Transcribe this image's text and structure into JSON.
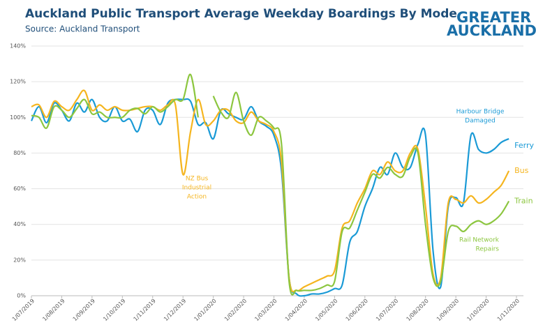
{
  "chart_data": {
    "type": "line",
    "title": "Auckland Public Transport Average Weekday Boardings By Mode",
    "subtitle": "Source: Auckland Transport",
    "logo": [
      "GREATER",
      "AUCKLAND"
    ],
    "categories": [
      "1/07/2019",
      null,
      null,
      null,
      "1/08/2019",
      null,
      null,
      null,
      "1/09/2019",
      null,
      null,
      null,
      "1/10/2019",
      null,
      null,
      null,
      "1/11/2019",
      null,
      null,
      null,
      "1/12/2019",
      null,
      null,
      null,
      "1/01/2020",
      null,
      null,
      null,
      "1/02/2020",
      null,
      null,
      null,
      "1/03/2020",
      null,
      null,
      null,
      "1/04/2020",
      null,
      null,
      null,
      "1/05/2020",
      null,
      null,
      null,
      "1/06/2020",
      null,
      null,
      null,
      "1/07/2020",
      null,
      null,
      null,
      "1/08/2020",
      null,
      null,
      null,
      "1/09/2020",
      null,
      null,
      null,
      "1/10/2020",
      null,
      null,
      null,
      "1/11/2020"
    ],
    "series": [
      {
        "name": "Ferry",
        "color": "#1a9ad6",
        "values": [
          98,
          106,
          97,
          108,
          104,
          98,
          108,
          103,
          110,
          100,
          98,
          106,
          98,
          99,
          92,
          104,
          104,
          96,
          108,
          110,
          110,
          109,
          96,
          97,
          88,
          104,
          102,
          100,
          99,
          106,
          98,
          95,
          90,
          70,
          10,
          1,
          0,
          1,
          1,
          2,
          4,
          6,
          30,
          36,
          50,
          60,
          72,
          68,
          80,
          72,
          72,
          85,
          90,
          25,
          5,
          50,
          55,
          52,
          90,
          82,
          80,
          82,
          86,
          88,
          null
        ]
      },
      {
        "name": "Bus",
        "color": "#f5b51f",
        "values": [
          106,
          107,
          100,
          109,
          106,
          104,
          110,
          115,
          104,
          107,
          104,
          106,
          104,
          104,
          105,
          106,
          106,
          104,
          107,
          107,
          68,
          92,
          110,
          96,
          98,
          104,
          104,
          98,
          97,
          103,
          98,
          96,
          92,
          75,
          10,
          3,
          5,
          7,
          9,
          11,
          14,
          38,
          42,
          52,
          60,
          70,
          68,
          75,
          70,
          70,
          80,
          82,
          50,
          12,
          10,
          52,
          54,
          52,
          56,
          52,
          54,
          58,
          62,
          70,
          null
        ]
      },
      {
        "name": "Train",
        "color": "#8cc63f",
        "values": [
          101,
          100,
          94,
          106,
          104,
          100,
          105,
          110,
          102,
          103,
          100,
          100,
          100,
          104,
          105,
          102,
          106,
          103,
          106,
          110,
          110,
          124,
          100,
          null,
          112,
          103,
          100,
          114,
          98,
          90,
          100,
          98,
          94,
          85,
          8,
          3,
          3,
          3,
          4,
          6,
          8,
          36,
          38,
          48,
          58,
          68,
          66,
          72,
          68,
          67,
          78,
          80,
          40,
          10,
          8,
          36,
          39,
          36,
          40,
          42,
          40,
          42,
          46,
          53,
          null
        ]
      }
    ],
    "ylim": [
      0,
      140
    ],
    "yticks": [
      {
        "value": 0,
        "label": "0%"
      },
      {
        "value": 20,
        "label": "20%"
      },
      {
        "value": 40,
        "label": "40%"
      },
      {
        "value": 60,
        "label": "60%"
      },
      {
        "value": 80,
        "label": "80%"
      },
      {
        "value": 100,
        "label": "100%"
      },
      {
        "value": 120,
        "label": "120%"
      },
      {
        "value": 140,
        "label": "140%"
      }
    ],
    "grid": true,
    "annotations": [
      {
        "lines": [
          "NZ Bus",
          "Industrial",
          "Action"
        ],
        "series": 1
      },
      {
        "lines": [
          "Harbour Bridge",
          "Damaged"
        ],
        "series": 0
      },
      {
        "lines": [
          "Rail Network",
          "Repairs"
        ],
        "series": 2
      }
    ]
  }
}
